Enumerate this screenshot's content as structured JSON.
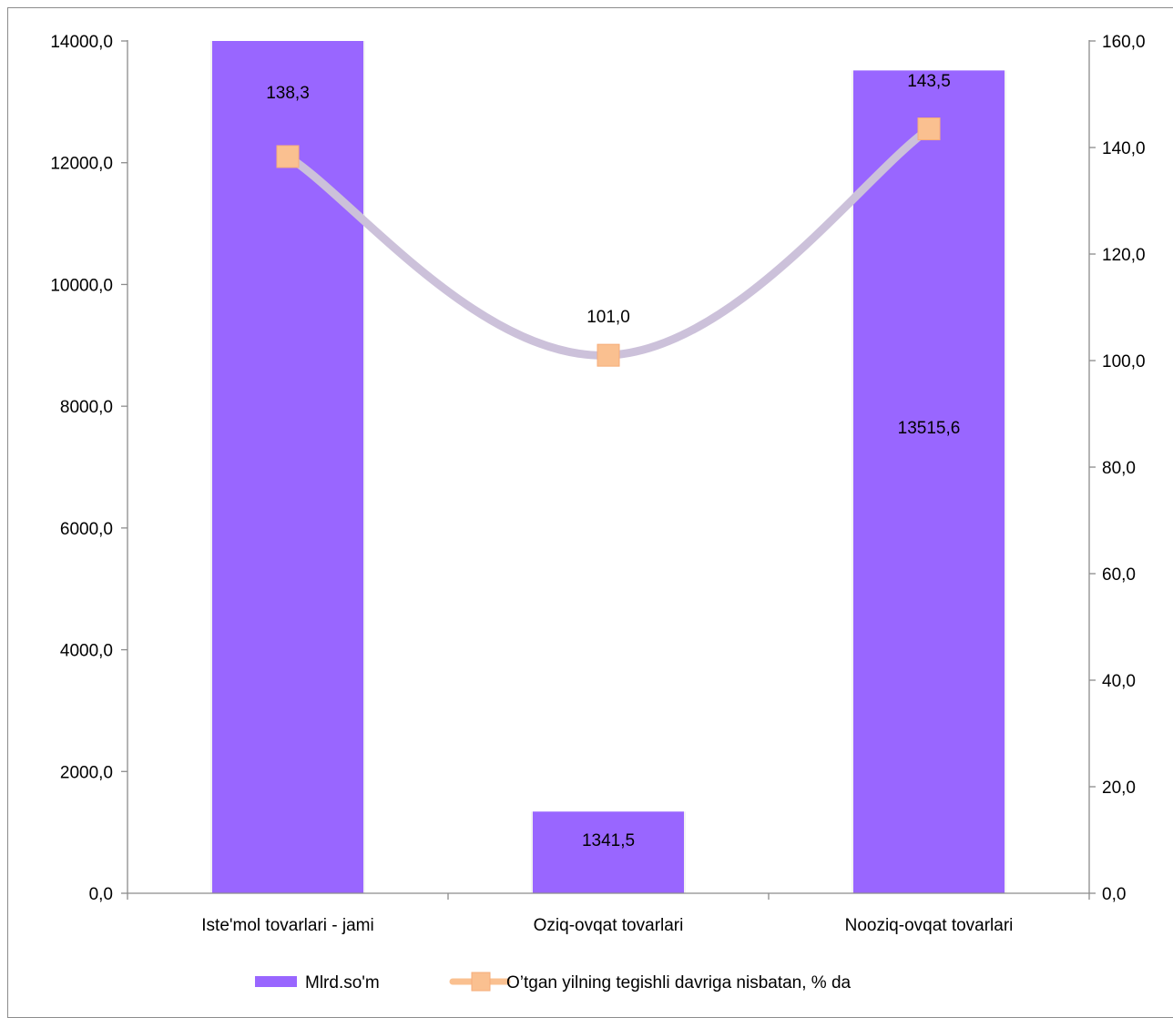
{
  "chart_data": {
    "type": "bar",
    "title": "",
    "xlabel": "",
    "ylabel": "",
    "categories": [
      "Iste'mol tovarlari - jami",
      "Oziq-ovqat tovarlari",
      "Nooziq-ovqat tovarlari"
    ],
    "series": [
      {
        "name": "Mlrd.so'm",
        "type": "bar",
        "axis": "left",
        "values": [
          14857.1,
          1341.5,
          13515.6
        ],
        "data_labels": [
          "",
          "1341,5",
          "13515,6"
        ],
        "color": "#9966ff"
      },
      {
        "name": "O’tgan yilning tegishli davriga nisbatan, % da",
        "type": "line",
        "axis": "right",
        "values": [
          138.3,
          101.0,
          143.5
        ],
        "data_labels": [
          "138,3",
          "101,0",
          "143,5"
        ],
        "line_color": "#ccc1da",
        "marker_color": "#fac090",
        "marker": "square"
      }
    ],
    "y_left": {
      "ylim": [
        0,
        14000
      ],
      "ticks": [
        0,
        2000,
        4000,
        6000,
        8000,
        10000,
        12000,
        14000
      ],
      "tick_labels": [
        "0,0",
        "2000,0",
        "4000,0",
        "6000,0",
        "8000,0",
        "10000,0",
        "12000,0",
        "14000,0"
      ]
    },
    "y_right": {
      "ylim": [
        0,
        160
      ],
      "ticks": [
        0,
        20,
        40,
        60,
        80,
        100,
        120,
        140,
        160
      ],
      "tick_labels": [
        "0,0",
        "20,0",
        "40,0",
        "60,0",
        "80,0",
        "100,0",
        "120,0",
        "140,0",
        "160,0"
      ]
    },
    "grid": false,
    "legend": "bottom"
  }
}
